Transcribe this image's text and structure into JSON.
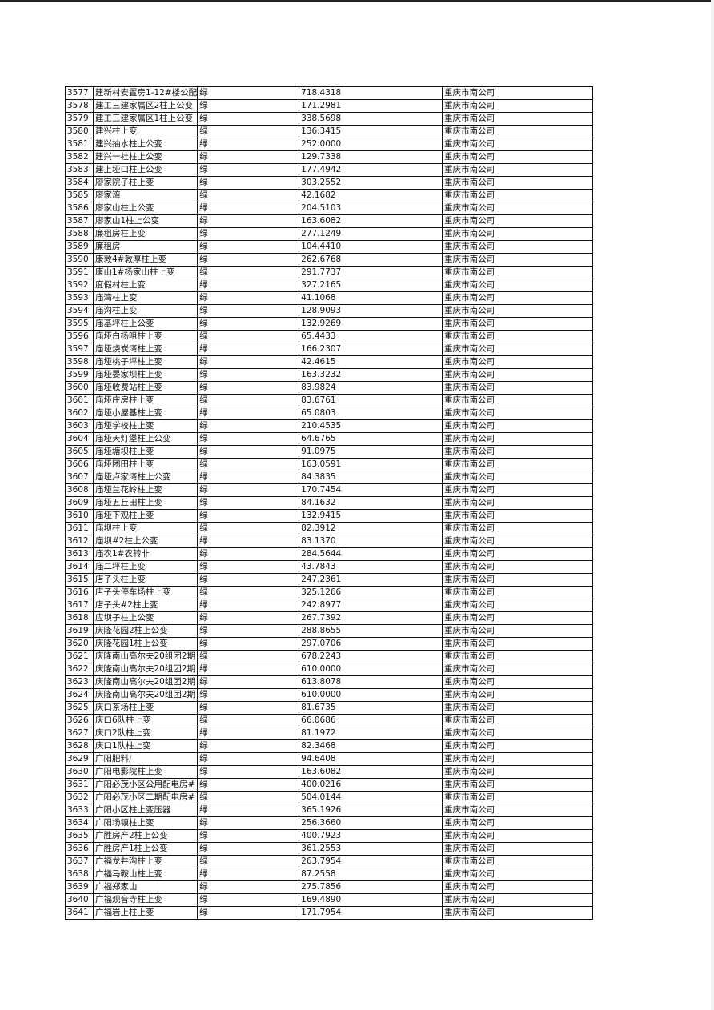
{
  "table": {
    "rows": [
      [
        "3577",
        "建新村安置房1-12#楼公配",
        "绿",
        "718.4318",
        "重庆市南公司"
      ],
      [
        "3578",
        "建工三建家属区2柱上公变",
        "绿",
        "171.2981",
        "重庆市南公司"
      ],
      [
        "3579",
        "建工三建家属区1柱上公变",
        "绿",
        "338.5698",
        "重庆市南公司"
      ],
      [
        "3580",
        "建兴柱上变",
        "绿",
        "136.3415",
        "重庆市南公司"
      ],
      [
        "3581",
        "建兴抽水柱上公变",
        "绿",
        "252.0000",
        "重庆市南公司"
      ],
      [
        "3582",
        "建兴一社柱上公变",
        "绿",
        "129.7338",
        "重庆市南公司"
      ],
      [
        "3583",
        "建上垭口柱上公变",
        "绿",
        "177.4942",
        "重庆市南公司"
      ],
      [
        "3584",
        "廖家院子柱上变",
        "绿",
        "303.2552",
        "重庆市南公司"
      ],
      [
        "3585",
        "廖家湾",
        "绿",
        "42.1682",
        "重庆市南公司"
      ],
      [
        "3586",
        "廖家山柱上公变",
        "绿",
        "204.5103",
        "重庆市南公司"
      ],
      [
        "3587",
        "廖家山1柱上公变",
        "绿",
        "163.6082",
        "重庆市南公司"
      ],
      [
        "3588",
        "廉租房柱上变",
        "绿",
        "277.1249",
        "重庆市南公司"
      ],
      [
        "3589",
        "廉租房",
        "绿",
        "104.4410",
        "重庆市南公司"
      ],
      [
        "3590",
        "康敦4#敦厚柱上变",
        "绿",
        "262.6768",
        "重庆市南公司"
      ],
      [
        "3591",
        "康山1#杨家山柱上变",
        "绿",
        "291.7737",
        "重庆市南公司"
      ],
      [
        "3592",
        "度假村柱上变",
        "绿",
        "327.2165",
        "重庆市南公司"
      ],
      [
        "3593",
        "庙湾柱上变",
        "绿",
        "41.1068",
        "重庆市南公司"
      ],
      [
        "3594",
        "庙沟柱上变",
        "绿",
        "128.9093",
        "重庆市南公司"
      ],
      [
        "3595",
        "庙基坪柱上公变",
        "绿",
        "132.9269",
        "重庆市南公司"
      ],
      [
        "3596",
        "庙垭白杨咀柱上变",
        "绿",
        "65.4433",
        "重庆市南公司"
      ],
      [
        "3597",
        "庙垭烧炭湾柱上变",
        "绿",
        "166.2307",
        "重庆市南公司"
      ],
      [
        "3598",
        "庙垭桃子坪柱上变",
        "绿",
        "42.4615",
        "重庆市南公司"
      ],
      [
        "3599",
        "庙垭晏家坝柱上变",
        "绿",
        "163.3232",
        "重庆市南公司"
      ],
      [
        "3600",
        "庙垭收费站柱上变",
        "绿",
        "83.9824",
        "重庆市南公司"
      ],
      [
        "3601",
        "庙垭庄房柱上变",
        "绿",
        "83.6761",
        "重庆市南公司"
      ],
      [
        "3602",
        "庙垭小屋基柱上变",
        "绿",
        "65.0803",
        "重庆市南公司"
      ],
      [
        "3603",
        "庙垭学校柱上变",
        "绿",
        "210.4535",
        "重庆市南公司"
      ],
      [
        "3604",
        "庙垭天灯堡柱上公变",
        "绿",
        "64.6765",
        "重庆市南公司"
      ],
      [
        "3605",
        "庙垭塘坝柱上变",
        "绿",
        "91.0975",
        "重庆市南公司"
      ],
      [
        "3606",
        "庙垭团田柱上变",
        "绿",
        "163.0591",
        "重庆市南公司"
      ],
      [
        "3607",
        "庙垭卢家湾柱上公变",
        "绿",
        "84.3835",
        "重庆市南公司"
      ],
      [
        "3608",
        "庙垭兰花岭柱上变",
        "绿",
        "170.7454",
        "重庆市南公司"
      ],
      [
        "3609",
        "庙垭五丘田柱上变",
        "绿",
        "84.1632",
        "重庆市南公司"
      ],
      [
        "3610",
        "庙垭下观柱上变",
        "绿",
        "132.9415",
        "重庆市南公司"
      ],
      [
        "3611",
        "庙坝柱上变",
        "绿",
        "82.3912",
        "重庆市南公司"
      ],
      [
        "3612",
        "庙坝#2柱上公变",
        "绿",
        "83.1370",
        "重庆市南公司"
      ],
      [
        "3613",
        "庙农1#农转非",
        "绿",
        "284.5644",
        "重庆市南公司"
      ],
      [
        "3614",
        "庙二坪柱上变",
        "绿",
        "43.7843",
        "重庆市南公司"
      ],
      [
        "3615",
        "店子头柱上变",
        "绿",
        "247.2361",
        "重庆市南公司"
      ],
      [
        "3616",
        "店子头停车场柱上变",
        "绿",
        "325.1266",
        "重庆市南公司"
      ],
      [
        "3617",
        "店子头#2柱上变",
        "绿",
        "242.8977",
        "重庆市南公司"
      ],
      [
        "3618",
        "应坝子柱上公变",
        "绿",
        "267.7392",
        "重庆市南公司"
      ],
      [
        "3619",
        "庆隆花园2柱上公变",
        "绿",
        "288.8655",
        "重庆市南公司"
      ],
      [
        "3620",
        "庆隆花园1柱上公变",
        "绿",
        "297.0706",
        "重庆市南公司"
      ],
      [
        "3621",
        "庆隆南山高尔夫20组团2期",
        "绿",
        "678.2243",
        "重庆市南公司"
      ],
      [
        "3622",
        "庆隆南山高尔夫20组团2期",
        "绿",
        "610.0000",
        "重庆市南公司"
      ],
      [
        "3623",
        "庆隆南山高尔夫20组团2期",
        "绿",
        "613.8078",
        "重庆市南公司"
      ],
      [
        "3624",
        "庆隆南山高尔夫20组团2期",
        "绿",
        "610.0000",
        "重庆市南公司"
      ],
      [
        "3625",
        "庆口茶场柱上变",
        "绿",
        "81.6735",
        "重庆市南公司"
      ],
      [
        "3626",
        "庆口6队柱上变",
        "绿",
        "66.0686",
        "重庆市南公司"
      ],
      [
        "3627",
        "庆口2队柱上变",
        "绿",
        "81.1972",
        "重庆市南公司"
      ],
      [
        "3628",
        "庆口1队柱上变",
        "绿",
        "82.3468",
        "重庆市南公司"
      ],
      [
        "3629",
        "广阳肥料厂",
        "绿",
        "94.6408",
        "重庆市南公司"
      ],
      [
        "3630",
        "广阳电影院柱上变",
        "绿",
        "163.6082",
        "重庆市南公司"
      ],
      [
        "3631",
        "广阳必茂小区公用配电房#",
        "绿",
        "400.0216",
        "重庆市南公司"
      ],
      [
        "3632",
        "广阳必茂小区二期配电房#",
        "绿",
        "504.0144",
        "重庆市南公司"
      ],
      [
        "3633",
        "广阳小区柱上变压器",
        "绿",
        "365.1926",
        "重庆市南公司"
      ],
      [
        "3634",
        "广阳场镇柱上变",
        "绿",
        "256.3660",
        "重庆市南公司"
      ],
      [
        "3635",
        "广胜房产2柱上公变",
        "绿",
        "400.7923",
        "重庆市南公司"
      ],
      [
        "3636",
        "广胜房产1柱上公变",
        "绿",
        "361.2553",
        "重庆市南公司"
      ],
      [
        "3637",
        "广福龙井沟柱上变",
        "绿",
        "263.7954",
        "重庆市南公司"
      ],
      [
        "3638",
        "广福马鞍山柱上变",
        "绿",
        "87.2558",
        "重庆市南公司"
      ],
      [
        "3639",
        "广福郑家山",
        "绿",
        "275.7856",
        "重庆市南公司"
      ],
      [
        "3640",
        "广福观音寺柱上变",
        "绿",
        "169.4890",
        "重庆市南公司"
      ],
      [
        "3641",
        "广福岩上柱上变",
        "绿",
        "171.7954",
        "重庆市南公司"
      ]
    ]
  }
}
